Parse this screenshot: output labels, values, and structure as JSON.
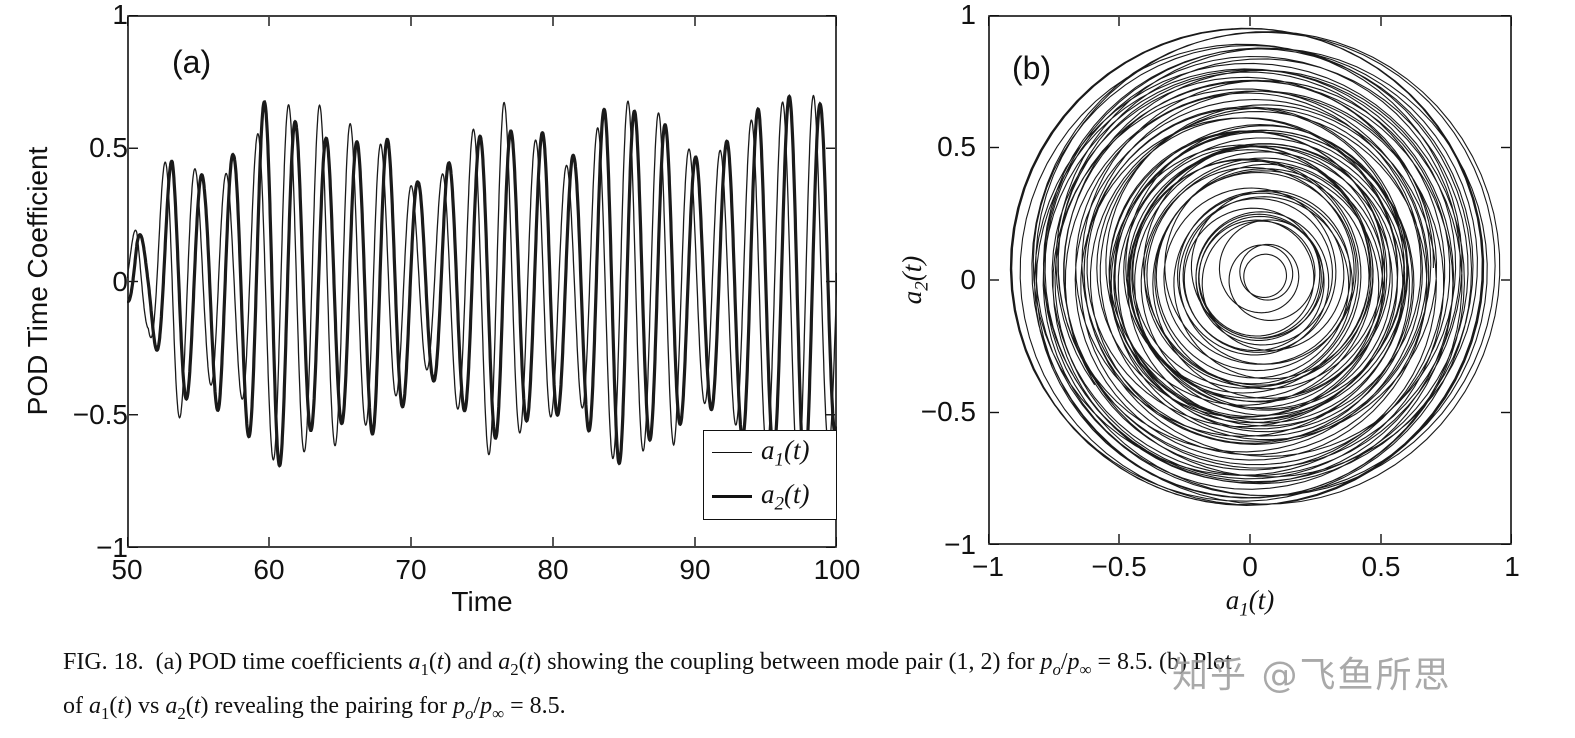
{
  "figure": {
    "watermark": {
      "text": "知乎 @飞鱼所思"
    },
    "caption": {
      "line1": [
        {
          "t": "FIG. 18.  (a) POD time coefficients "
        },
        {
          "t": "a",
          "i": 1
        },
        {
          "t": "1",
          "s": 1
        },
        {
          "t": "("
        },
        {
          "t": "t",
          "i": 1
        },
        {
          "t": ") and "
        },
        {
          "t": "a",
          "i": 1
        },
        {
          "t": "2",
          "s": 1
        },
        {
          "t": "("
        },
        {
          "t": "t",
          "i": 1
        },
        {
          "t": ") showing the coupling between mode pair (1, 2) for "
        },
        {
          "t": "p",
          "i": 1
        },
        {
          "t": "o",
          "s": 1,
          "i": 1
        },
        {
          "t": "/"
        },
        {
          "t": "p",
          "i": 1
        },
        {
          "t": "∞",
          "s": 1
        },
        {
          "t": " = 8.5. (b) Plot"
        }
      ],
      "line2": [
        {
          "t": "of "
        },
        {
          "t": "a",
          "i": 1
        },
        {
          "t": "1",
          "s": 1
        },
        {
          "t": "("
        },
        {
          "t": "t",
          "i": 1
        },
        {
          "t": ") vs "
        },
        {
          "t": "a",
          "i": 1
        },
        {
          "t": "2",
          "s": 1
        },
        {
          "t": "("
        },
        {
          "t": "t",
          "i": 1
        },
        {
          "t": ") revealing the pairing for "
        },
        {
          "t": "p",
          "i": 1
        },
        {
          "t": "o",
          "s": 1,
          "i": 1
        },
        {
          "t": "/"
        },
        {
          "t": "p",
          "i": 1
        },
        {
          "t": "∞",
          "s": 1
        },
        {
          "t": " = 8.5."
        }
      ]
    }
  },
  "chart_data": [
    {
      "id": "panel-a",
      "type": "line",
      "panel_label": "(a)",
      "xlabel": "Time",
      "ylabel": "POD Time Coefficient",
      "xlim": [
        50,
        100
      ],
      "ylim": [
        -1,
        1
      ],
      "xticks": [
        50,
        60,
        70,
        80,
        90,
        100
      ],
      "yticks": [
        -1,
        -0.5,
        0,
        0.5,
        1
      ],
      "xtick_labels": [
        "50",
        "60",
        "70",
        "80",
        "90",
        "100"
      ],
      "ytick_labels_top_to_bottom": [
        "1",
        "0.5",
        "0",
        "−0.5",
        "−1"
      ],
      "grid": false,
      "line_color": "#1a1a1a",
      "series": [
        {
          "name": "a1(t)",
          "role": "thin",
          "stroke_width": 1.3,
          "phase": 0.15,
          "amp_mod": [
            0.12,
            0.55,
            0.9
          ]
        },
        {
          "name": "a2(t)",
          "role": "thick",
          "stroke_width": 3.2,
          "phase": -1.2,
          "amp_mod": [
            -0.11,
            0.5,
            0.2
          ]
        }
      ],
      "signal_model": {
        "carrier_freq": 0.46,
        "freq_wobble_amp": 0.015,
        "freq_wobble_rate": 0.35,
        "sample_step": 0.02,
        "envelope_breakpoints": [
          [
            50,
            0.08
          ],
          [
            50.7,
            0.2
          ],
          [
            51.5,
            0.16
          ],
          [
            52.3,
            0.34
          ],
          [
            53.2,
            0.52
          ],
          [
            54.2,
            0.48
          ],
          [
            55.5,
            0.4
          ],
          [
            56.5,
            0.48
          ],
          [
            57.5,
            0.44
          ],
          [
            58.5,
            0.52
          ],
          [
            59.5,
            0.6
          ],
          [
            60.5,
            0.66
          ],
          [
            61.5,
            0.6
          ],
          [
            62.5,
            0.57
          ],
          [
            63.5,
            0.6
          ],
          [
            64.5,
            0.58
          ],
          [
            65.5,
            0.61
          ],
          [
            66.5,
            0.57
          ],
          [
            67.5,
            0.62
          ],
          [
            68.5,
            0.52
          ],
          [
            69.5,
            0.44
          ],
          [
            70.5,
            0.34
          ],
          [
            71.5,
            0.33
          ],
          [
            72.5,
            0.4
          ],
          [
            73.5,
            0.44
          ],
          [
            74.5,
            0.52
          ],
          [
            75.5,
            0.6
          ],
          [
            76.5,
            0.66
          ],
          [
            77.5,
            0.6
          ],
          [
            78.5,
            0.58
          ],
          [
            79.5,
            0.62
          ],
          [
            80.5,
            0.5
          ],
          [
            81.5,
            0.46
          ],
          [
            82.5,
            0.52
          ],
          [
            83.5,
            0.58
          ],
          [
            84.5,
            0.62
          ],
          [
            85.5,
            0.6
          ],
          [
            86.5,
            0.57
          ],
          [
            87.5,
            0.6
          ],
          [
            88.5,
            0.62
          ],
          [
            89.5,
            0.54
          ],
          [
            90.5,
            0.51
          ],
          [
            91.5,
            0.55
          ],
          [
            92.5,
            0.57
          ],
          [
            93.5,
            0.6
          ],
          [
            94.5,
            0.62
          ],
          [
            95.5,
            0.58
          ],
          [
            96.5,
            0.62
          ],
          [
            97.5,
            0.66
          ],
          [
            98.5,
            0.64
          ],
          [
            99.2,
            0.62
          ],
          [
            100,
            0.57
          ]
        ]
      },
      "legend": {
        "position": "bottom-right",
        "entries": [
          {
            "var": "a",
            "sub": "1",
            "open": "(",
            "arg": "t",
            "close": ")"
          },
          {
            "var": "a",
            "sub": "2",
            "open": "(",
            "arg": "t",
            "close": ")"
          }
        ]
      }
    },
    {
      "id": "panel-b",
      "type": "line",
      "subtype": "phase-portrait",
      "panel_label": "(b)",
      "xlabel_parts": {
        "var": "a",
        "sub": "1",
        "open": "(",
        "arg": "t",
        "close": ")"
      },
      "ylabel_parts": {
        "var": "a",
        "sub": "2",
        "open": "(",
        "arg": "t",
        "close": ")"
      },
      "xlim": [
        -1,
        1
      ],
      "ylim": [
        -1,
        1
      ],
      "xticks": [
        -1,
        -0.5,
        0,
        0.5,
        1
      ],
      "yticks": [
        -1,
        -0.5,
        0,
        0.5,
        1
      ],
      "xtick_labels": [
        "−1",
        "−0.5",
        "0",
        "0.5",
        "1"
      ],
      "ytick_labels_top_to_bottom": [
        "1",
        "0.5",
        "0",
        "−0.5",
        "−1"
      ],
      "line_color": "#1a1a1a",
      "stroke_width": 1.1,
      "trajectory_model": {
        "t_max": 160,
        "step": 0.03,
        "carrier_freq": 0.46,
        "radius_offset": 0.55,
        "radius_terms": [
          [
            0.24,
            0.171,
            0.4
          ],
          [
            0.13,
            0.067,
            2.1
          ],
          [
            0.1,
            0.029,
            4.0
          ],
          [
            0.05,
            0.41,
            0.0
          ]
        ],
        "radius_clamp": [
          0.05,
          0.9
        ],
        "center_x": {
          "offset": 0.02,
          "terms": [
            [
              0.04,
              0.05,
              0.0
            ]
          ]
        },
        "center_y": {
          "offset": 0.02,
          "terms": [
            [
              0.03,
              0.083,
              1.0
            ]
          ]
        }
      }
    }
  ]
}
